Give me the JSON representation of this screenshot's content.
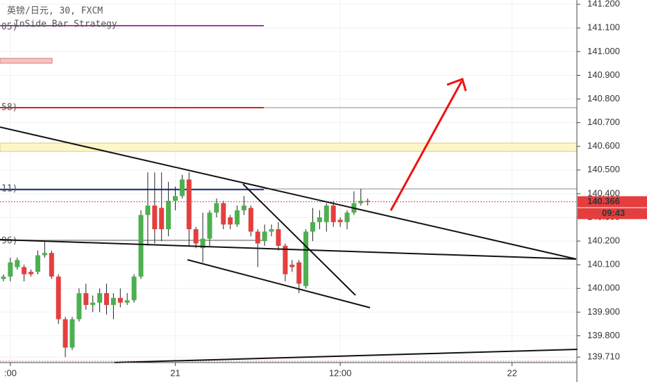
{
  "chart_data": {
    "type": "candlestick",
    "title": "英镑/日元, 30, FXCM",
    "subtitle": "InSide Bar Strategy",
    "level_labels": [
      "05)",
      "58)",
      "11)",
      "96)"
    ],
    "up_color": "#4cb050",
    "down_color": "#e53e3e",
    "categories": [
      null,
      ":00",
      null,
      null,
      null,
      null,
      null,
      null,
      null,
      null,
      null,
      null,
      null,
      null,
      null,
      null,
      null,
      null,
      null,
      null,
      null,
      null,
      null,
      null,
      null,
      "21",
      null,
      null,
      null,
      null,
      null,
      null,
      null,
      null,
      null,
      null,
      null,
      null,
      null,
      null,
      null,
      null,
      null,
      null,
      null,
      null,
      null,
      null,
      null,
      "12:00",
      null,
      null,
      null,
      null,
      null,
      null,
      null,
      null,
      null,
      null,
      null,
      null,
      null,
      null,
      null,
      null,
      null,
      null,
      null,
      null,
      null,
      null,
      null,
      null,
      "22",
      null,
      null,
      null,
      null,
      null,
      null,
      null,
      null,
      null
    ],
    "open": [
      140.04,
      140.05,
      140.09,
      140.09,
      140.07,
      140.07,
      140.14,
      140.15,
      140.05,
      139.87,
      139.75,
      139.87,
      139.98,
      139.93,
      139.94,
      139.98,
      139.93,
      139.96,
      139.94,
      139.95,
      140.05,
      140.31,
      140.35,
      140.34,
      140.25,
      140.37,
      140.39,
      140.46,
      140.25,
      140.17,
      140.21,
      140.32,
      140.36,
      140.3,
      140.27,
      140.33,
      140.34,
      140.24,
      140.2,
      140.24,
      140.25,
      140.18,
      140.1,
      140.11,
      140.01,
      140.24,
      140.28,
      140.28,
      140.35,
      140.29,
      140.28,
      140.32,
      140.36,
      140.37,
      null,
      null,
      null,
      null,
      null,
      null,
      null,
      null,
      null,
      null,
      null,
      null,
      null,
      null,
      null,
      null,
      null,
      null,
      null,
      null,
      null,
      null,
      null,
      null,
      null,
      null,
      null,
      null,
      null,
      null
    ],
    "high": [
      140.06,
      140.13,
      140.13,
      140.1,
      140.08,
      140.16,
      140.2,
      140.16,
      140.06,
      139.88,
      139.88,
      140.0,
      140.02,
      139.97,
      140.0,
      140.02,
      139.98,
      140.0,
      139.98,
      140.06,
      140.33,
      140.49,
      140.49,
      140.49,
      140.45,
      140.43,
      140.48,
      140.49,
      140.26,
      140.32,
      140.33,
      140.38,
      140.37,
      140.31,
      140.35,
      140.39,
      140.35,
      140.25,
      140.27,
      140.27,
      140.28,
      140.19,
      140.12,
      140.12,
      140.25,
      140.34,
      140.33,
      140.36,
      140.37,
      140.3,
      140.33,
      140.41,
      140.42,
      140.38,
      null,
      null,
      null,
      null,
      null,
      null,
      null,
      null,
      null,
      null,
      null,
      null,
      null,
      null,
      null,
      null,
      null,
      null,
      null,
      null,
      null,
      null,
      null,
      null,
      null,
      null,
      null,
      null,
      null,
      null
    ],
    "low": [
      140.03,
      140.03,
      140.08,
      140.03,
      140.05,
      140.06,
      140.13,
      140.04,
      139.85,
      139.71,
      139.74,
      139.86,
      139.91,
      139.9,
      139.9,
      139.89,
      139.87,
      139.92,
      139.93,
      139.94,
      140.04,
      140.18,
      140.19,
      140.2,
      140.22,
      140.33,
      140.38,
      140.18,
      140.17,
      140.11,
      140.18,
      140.3,
      140.25,
      140.25,
      140.26,
      140.31,
      140.22,
      140.09,
      140.18,
      140.22,
      140.16,
      140.03,
      140.07,
      139.98,
      140.0,
      140.2,
      140.25,
      140.24,
      140.26,
      140.26,
      140.25,
      140.31,
      140.35,
      140.35,
      null,
      null,
      null,
      null,
      null,
      null,
      null,
      null,
      null,
      null,
      null,
      null,
      null,
      null,
      null,
      null,
      null,
      null,
      null,
      null,
      null,
      null,
      null,
      null,
      null,
      null,
      null,
      null,
      null,
      null
    ],
    "close": [
      140.05,
      140.11,
      140.12,
      140.06,
      140.06,
      140.14,
      140.15,
      140.05,
      139.87,
      139.75,
      139.87,
      139.98,
      139.93,
      139.94,
      139.98,
      139.93,
      139.96,
      139.94,
      139.95,
      140.05,
      140.31,
      140.35,
      140.25,
      140.25,
      140.37,
      140.39,
      140.46,
      140.25,
      140.19,
      140.21,
      140.32,
      140.36,
      140.27,
      140.27,
      140.33,
      140.35,
      140.24,
      140.19,
      140.24,
      140.25,
      140.18,
      140.06,
      140.09,
      140.02,
      140.24,
      140.28,
      140.3,
      140.35,
      140.28,
      140.28,
      140.32,
      140.36,
      140.37,
      140.366,
      null,
      null,
      null,
      null,
      null,
      null,
      null,
      null,
      null,
      null,
      null,
      null,
      null,
      null,
      null,
      null,
      null,
      null,
      null,
      null,
      null,
      null,
      null,
      null,
      null,
      null,
      null,
      null,
      null,
      null
    ],
    "ylim": [
      139.687,
      141.218
    ],
    "yticks": [
      {
        "value": 141.2,
        "label": "141.200"
      },
      {
        "value": 141.1,
        "label": "141.100"
      },
      {
        "value": 141.0,
        "label": "141.000"
      },
      {
        "value": 140.9,
        "label": "140.900"
      },
      {
        "value": 140.8,
        "label": "140.800"
      },
      {
        "value": 140.7,
        "label": "140.700"
      },
      {
        "value": 140.6,
        "label": "140.600"
      },
      {
        "value": 140.5,
        "label": "140.500"
      },
      {
        "value": 140.4,
        "label": "140.400"
      },
      {
        "value": 140.3,
        "label": "140.300"
      },
      {
        "value": 140.2,
        "label": "140.200"
      },
      {
        "value": 140.1,
        "label": "140.100"
      },
      {
        "value": 140.0,
        "label": "140.000"
      },
      {
        "value": 139.9,
        "label": "139.900"
      },
      {
        "value": 139.8,
        "label": "139.800"
      },
      {
        "value": 139.71,
        "label": "139.710"
      }
    ],
    "grid": true,
    "last_price": 140.366,
    "last_price_label": "140.366",
    "countdown": "09:43"
  }
}
